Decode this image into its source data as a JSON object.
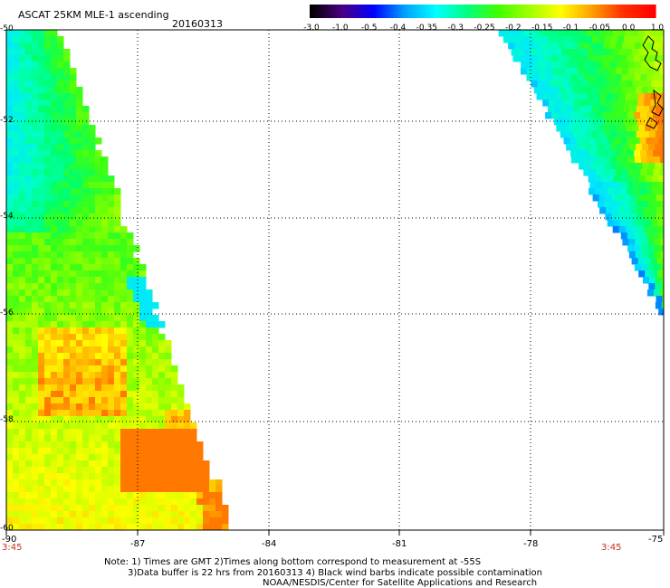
{
  "header": {
    "title": "ASCAT 25KM MLE-1 ascending",
    "date": "20160313"
  },
  "colorbar": {
    "labels": [
      "-3.0",
      "-1.0",
      "-0.5",
      "-0.4",
      "-0.35",
      "-0.3",
      "-0.25",
      "-0.2",
      "-0.15",
      "-0.1",
      "-0.05",
      "0.0",
      "1.0"
    ],
    "colors": [
      "#000000",
      "#4b0082",
      "#0000ff",
      "#00a0ff",
      "#00ffff",
      "#00ff80",
      "#40ff00",
      "#a0ff00",
      "#ffff00",
      "#ffa000",
      "#ff3000",
      "#ff0000"
    ]
  },
  "axes": {
    "lat_labels": [
      "-50",
      "-52",
      "-54",
      "-56",
      "-58",
      "-60"
    ],
    "lon_labels": [
      "-90",
      "-87",
      "-84",
      "-81",
      "-78",
      "-75"
    ]
  },
  "times": {
    "left": "3:45",
    "right": "3:45"
  },
  "notes": {
    "line1": "Note: 1) Times are GMT 2)Times along bottom correspond to measurement at -55S",
    "line2": "3)Data buffer is 22 hrs from 20160313 4) Black wind barbs indicate possible contamination",
    "line3": "NOAA/NESDIS/Center for Satellite Applications and Research"
  }
}
